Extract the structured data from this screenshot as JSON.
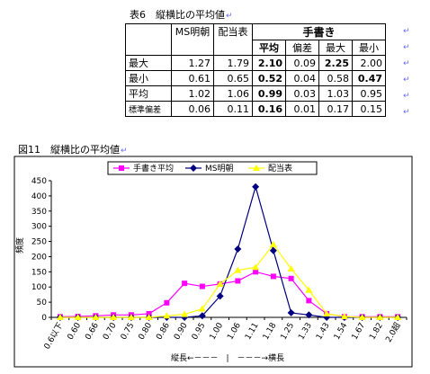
{
  "table": {
    "caption": "表6　縦横比の平均値",
    "col_headers": [
      "MS明朝",
      "配当表"
    ],
    "hand_header": "手書き",
    "hand_subheaders": [
      "平均",
      "偏差",
      "最大",
      "最小"
    ],
    "rows": [
      {
        "label": "最大",
        "values": [
          "1.27",
          "1.79",
          "2.10",
          "0.09",
          "2.25",
          "2.00"
        ]
      },
      {
        "label": "最小",
        "values": [
          "0.61",
          "0.65",
          "0.52",
          "0.04",
          "0.58",
          "0.47"
        ]
      },
      {
        "label": "平均",
        "values": [
          "1.02",
          "1.06",
          "0.99",
          "0.03",
          "1.03",
          "0.95"
        ]
      },
      {
        "label": "標準偏差",
        "values": [
          "0.06",
          "0.11",
          "0.16",
          "0.01",
          "0.17",
          "0.15"
        ]
      }
    ]
  },
  "figure": {
    "caption": "図11　縦横比の平均値"
  },
  "chart_data": {
    "type": "line",
    "ylabel": "頻度",
    "xlabel": "縦長←－－－　|　－－－→横長",
    "ylim": [
      0,
      450
    ],
    "yticks": [
      0,
      50,
      100,
      150,
      200,
      250,
      300,
      350,
      400,
      450
    ],
    "grid": false,
    "legend": "top",
    "categories": [
      "0.6以下",
      "0.60",
      "0.66",
      "0.70",
      "0.75",
      "0.80",
      "0.86",
      "0.90",
      "0.95",
      "1.00",
      "1.06",
      "1.11",
      "1.18",
      "1.25",
      "1.33",
      "1.43",
      "1.54",
      "1.67",
      "1.82",
      "2.0超"
    ],
    "series": [
      {
        "name": "手書き平均",
        "color": "#ff00ff",
        "marker": "square",
        "values": [
          2,
          3,
          5,
          8,
          8,
          12,
          48,
          112,
          102,
          110,
          120,
          150,
          135,
          128,
          55,
          12,
          2,
          2,
          2,
          2
        ]
      },
      {
        "name": "MS明朝",
        "color": "#000080",
        "marker": "diamond",
        "values": [
          0,
          0,
          0,
          0,
          0,
          0,
          0,
          0,
          5,
          70,
          225,
          430,
          220,
          15,
          8,
          0,
          0,
          0,
          0,
          0
        ]
      },
      {
        "name": "配当表",
        "color": "#ffff00",
        "marker": "triangle",
        "values": [
          0,
          0,
          0,
          0,
          0,
          0,
          5,
          10,
          28,
          110,
          155,
          165,
          240,
          160,
          90,
          12,
          3,
          0,
          0,
          0
        ]
      }
    ]
  }
}
